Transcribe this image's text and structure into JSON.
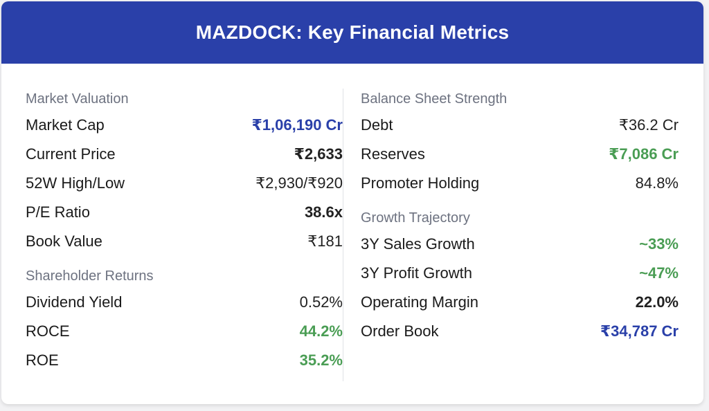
{
  "title": "MAZDOCK: Key Financial Metrics",
  "colors": {
    "header_bg": "#2a40a9",
    "accent_blue": "#2a40a9",
    "accent_green": "#4a9d54"
  },
  "left": {
    "market_valuation": {
      "title": "Market Valuation",
      "rows": [
        {
          "label": "Market Cap",
          "value": "₹1,06,190 Cr"
        },
        {
          "label": "Current Price",
          "value": "₹2,633"
        },
        {
          "label": "52W High/Low",
          "value": "₹2,930/₹920"
        },
        {
          "label": "P/E Ratio",
          "value": "38.6x"
        },
        {
          "label": "Book Value",
          "value": "₹181"
        }
      ]
    },
    "shareholder_returns": {
      "title": "Shareholder Returns",
      "rows": [
        {
          "label": "Dividend Yield",
          "value": "0.52%"
        },
        {
          "label": "ROCE",
          "value": "44.2%"
        },
        {
          "label": "ROE",
          "value": "35.2%"
        }
      ]
    }
  },
  "right": {
    "balance_sheet": {
      "title": "Balance Sheet Strength",
      "rows": [
        {
          "label": "Debt",
          "value": "₹36.2 Cr"
        },
        {
          "label": "Reserves",
          "value": "₹7,086 Cr"
        },
        {
          "label": "Promoter Holding",
          "value": "84.8%"
        }
      ]
    },
    "growth": {
      "title": "Growth Trajectory",
      "rows": [
        {
          "label": "3Y Sales Growth",
          "value": "~33%"
        },
        {
          "label": "3Y Profit Growth",
          "value": "~47%"
        },
        {
          "label": "Operating Margin",
          "value": "22.0%"
        },
        {
          "label": "Order Book",
          "value": "₹34,787 Cr"
        }
      ]
    }
  }
}
